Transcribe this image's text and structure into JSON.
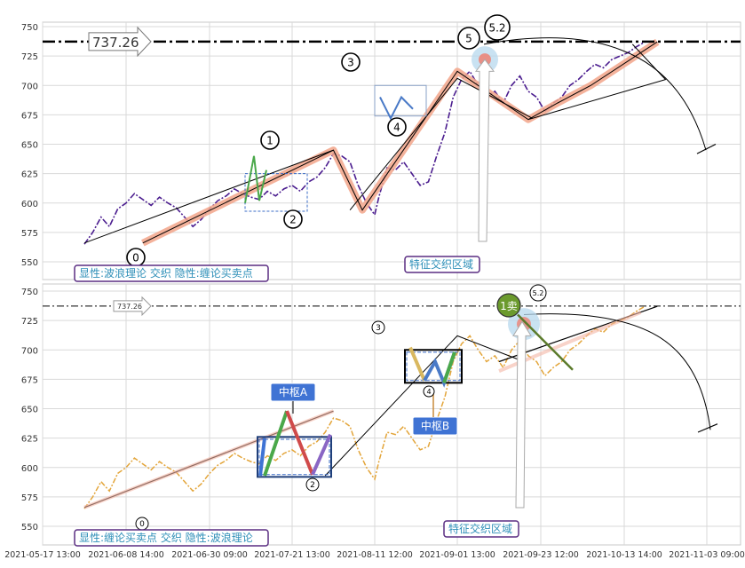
{
  "colors": {
    "grid": "#d9d9d9",
    "purple_price": "#4b1d8f",
    "orange_price": "#e3a53a",
    "wave_highlight": "#f2a48a",
    "wave_line": "#000000",
    "pivot_box": "#3b6cc7",
    "label_text": "#2e8fb8",
    "label_border": "#5a2d82",
    "hub_label_bg": "#3f73d4",
    "sell_badge": "#6b9a2d"
  },
  "chart_data": [
    {
      "type": "line",
      "name": "top-panel",
      "x": [
        "2021-05-17 13:00",
        "2021-06-08 14:00",
        "2021-06-30 09:00",
        "2021-07-21 13:00",
        "2021-08-11 12:00",
        "2021-09-01 13:00",
        "2021-09-23 12:00",
        "2021-10-13 14:00",
        "2021-11-03 09:00"
      ],
      "yticks": [
        550,
        575,
        600,
        625,
        650,
        675,
        700,
        725,
        750
      ],
      "ylim": [
        540,
        752
      ],
      "price": [
        [
          0.5,
          565
        ],
        [
          0.6,
          575
        ],
        [
          0.7,
          588
        ],
        [
          0.8,
          580
        ],
        [
          0.9,
          595
        ],
        [
          1.0,
          600
        ],
        [
          1.1,
          608
        ],
        [
          1.2,
          603
        ],
        [
          1.3,
          598
        ],
        [
          1.4,
          605
        ],
        [
          1.5,
          600
        ],
        [
          1.6,
          596
        ],
        [
          1.7,
          588
        ],
        [
          1.8,
          580
        ],
        [
          1.9,
          586
        ],
        [
          2.0,
          595
        ],
        [
          2.1,
          602
        ],
        [
          2.2,
          606
        ],
        [
          2.3,
          612
        ],
        [
          2.4,
          608
        ],
        [
          2.5,
          605
        ],
        [
          2.6,
          603
        ],
        [
          2.7,
          610
        ],
        [
          2.8,
          606
        ],
        [
          2.9,
          612
        ],
        [
          3.0,
          615
        ],
        [
          3.1,
          610
        ],
        [
          3.2,
          618
        ],
        [
          3.3,
          622
        ],
        [
          3.4,
          630
        ],
        [
          3.5,
          642
        ],
        [
          3.6,
          640
        ],
        [
          3.7,
          635
        ],
        [
          3.8,
          615
        ],
        [
          3.9,
          600
        ],
        [
          4.0,
          590
        ],
        [
          4.05,
          605
        ],
        [
          4.15,
          630
        ],
        [
          4.25,
          628
        ],
        [
          4.35,
          635
        ],
        [
          4.45,
          625
        ],
        [
          4.55,
          615
        ],
        [
          4.65,
          618
        ],
        [
          4.75,
          640
        ],
        [
          4.85,
          660
        ],
        [
          4.95,
          690
        ],
        [
          5.05,
          705
        ],
        [
          5.15,
          712
        ],
        [
          5.25,
          700
        ],
        [
          5.35,
          690
        ],
        [
          5.45,
          695
        ],
        [
          5.55,
          685
        ],
        [
          5.65,
          700
        ],
        [
          5.75,
          708
        ],
        [
          5.85,
          695
        ],
        [
          5.95,
          690
        ],
        [
          6.05,
          678
        ],
        [
          6.15,
          685
        ],
        [
          6.25,
          690
        ],
        [
          6.35,
          700
        ],
        [
          6.45,
          705
        ],
        [
          6.55,
          712
        ],
        [
          6.65,
          718
        ],
        [
          6.75,
          715
        ],
        [
          6.85,
          722
        ],
        [
          6.95,
          725
        ],
        [
          7.05,
          728
        ],
        [
          7.15,
          733
        ],
        [
          7.25,
          737
        ]
      ],
      "wave_labels": [
        "0",
        "1",
        "2",
        "3",
        "4",
        "5",
        "5.2"
      ],
      "resistance_label": "737.26",
      "legend_text": "显性:波浪理论 交织 隐性:缠论买卖点",
      "zone_label": "特征交织区域"
    },
    {
      "type": "line",
      "name": "bottom-panel",
      "x": [
        "2021-05-17 13:00",
        "2021-06-08 14:00",
        "2021-06-30 09:00",
        "2021-07-21 13:00",
        "2021-08-11 12:00",
        "2021-09-01 13:00",
        "2021-09-23 12:00",
        "2021-10-13 14:00",
        "2021-11-03 09:00"
      ],
      "yticks": [
        550,
        575,
        600,
        625,
        650,
        675,
        700,
        725,
        750
      ],
      "ylim": [
        540,
        752
      ],
      "wave_labels": [
        "0",
        "2",
        "3",
        "4",
        "5.2"
      ],
      "resistance_label": "737.26",
      "hub_labels": [
        "中枢A",
        "中枢B"
      ],
      "sell_label": "1卖",
      "legend_text": "显性:缠论买卖点 交织 隐性:波浪理论",
      "zone_label": "特征交织区域"
    }
  ]
}
